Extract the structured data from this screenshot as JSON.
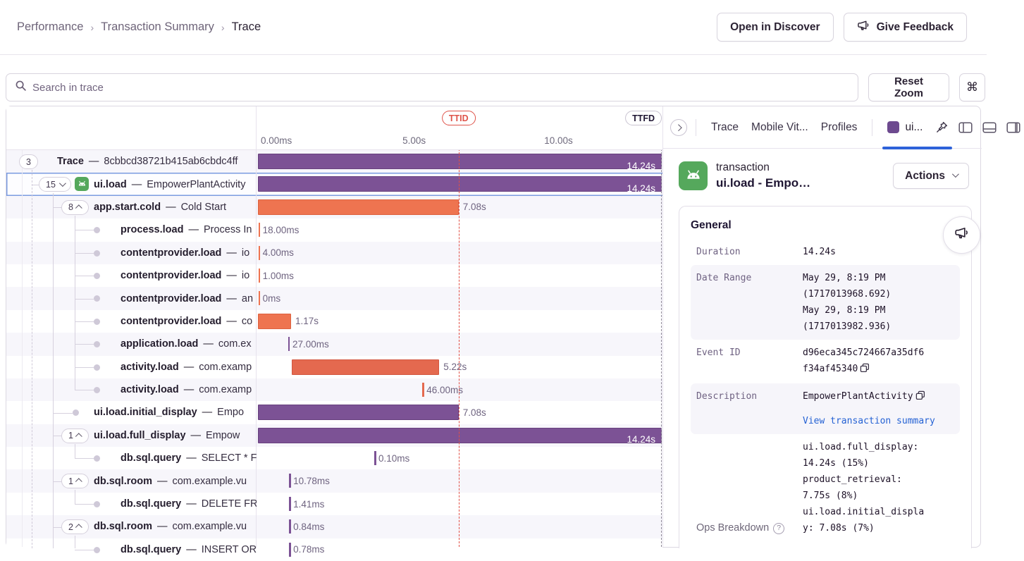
{
  "breadcrumb": {
    "items": [
      "Performance",
      "Transaction Summary"
    ],
    "current": "Trace"
  },
  "header": {
    "open_discover": "Open in Discover",
    "give_feedback": "Give Feedback"
  },
  "toolbar": {
    "search_placeholder": "Search in trace",
    "reset_zoom": "Reset Zoom",
    "shortcut": "⌘"
  },
  "timeline": {
    "ttid_label": "TTID",
    "ttfd_label": "TTFD",
    "ttid_pct": 49.7,
    "ttfd_pct": 100,
    "gridlines_pct": [
      35.1,
      70.2
    ],
    "ticks": [
      {
        "label": "0.00ms",
        "pct": 0
      },
      {
        "label": "5.00s",
        "pct": 35.1
      },
      {
        "label": "10.00s",
        "pct": 70.2
      }
    ]
  },
  "trace": {
    "separator": "—",
    "rows": [
      {
        "kind": "pill",
        "count": "3",
        "chevron": "none",
        "level": 0,
        "op": "Trace",
        "desc": "8cbbcd38721b415ab6cbdc4ff",
        "bar": {
          "shape": "bar",
          "color": "purple",
          "start": 0,
          "width": 100,
          "label": "14.24s",
          "inside": true
        }
      },
      {
        "kind": "pill",
        "count": "15",
        "chevron": "down",
        "level": 1,
        "op": "ui.load",
        "desc": "EmpowerPlantActivity",
        "icon": "android",
        "selected": true,
        "bar": {
          "shape": "bar",
          "color": "purple",
          "start": 0,
          "width": 100,
          "label": "14.24s",
          "inside": true
        }
      },
      {
        "kind": "pill",
        "count": "8",
        "chevron": "up",
        "level": 2,
        "op": "app.start.cold",
        "desc": "Cold Start",
        "bar": {
          "shape": "bar",
          "color": "orange",
          "start": 0,
          "width": 49.7,
          "label": "7.08s"
        }
      },
      {
        "kind": "dot",
        "level": 3,
        "op": "process.load",
        "desc": "Process In",
        "bar": {
          "shape": "tick",
          "color": "orange",
          "start": 0.1,
          "label": "18.00ms"
        }
      },
      {
        "kind": "dot",
        "level": 3,
        "op": "contentprovider.load",
        "desc": "io",
        "bar": {
          "shape": "tick",
          "color": "orange",
          "start": 0.1,
          "label": "4.00ms"
        }
      },
      {
        "kind": "dot",
        "level": 3,
        "op": "contentprovider.load",
        "desc": "io",
        "bar": {
          "shape": "tick",
          "color": "orange",
          "start": 0.1,
          "label": "1.00ms"
        }
      },
      {
        "kind": "dot",
        "level": 3,
        "op": "contentprovider.load",
        "desc": "an",
        "bar": {
          "shape": "tick",
          "color": "orange",
          "start": 0.1,
          "label": "0ms"
        }
      },
      {
        "kind": "dot",
        "level": 3,
        "op": "contentprovider.load",
        "desc": "co",
        "bar": {
          "shape": "bar",
          "color": "orange",
          "start": 0,
          "width": 8.2,
          "label": "1.17s"
        }
      },
      {
        "kind": "dot",
        "level": 3,
        "op": "application.load",
        "desc": "com.ex",
        "bar": {
          "shape": "tick",
          "color": "purple",
          "start": 7.5,
          "label": "27.00ms"
        }
      },
      {
        "kind": "dot",
        "level": 3,
        "op": "activity.load",
        "desc": "com.examp",
        "bar": {
          "shape": "bar",
          "color": "red",
          "start": 8.3,
          "width": 36.6,
          "label": "5.22s"
        }
      },
      {
        "kind": "dot",
        "level": 3,
        "op": "activity.load",
        "desc": "com.examp",
        "bar": {
          "shape": "tick",
          "color": "red",
          "start": 40.7,
          "label": "46.00ms"
        }
      },
      {
        "kind": "dot",
        "level": 2,
        "op": "ui.load.initial_display",
        "desc": "Empo",
        "bar": {
          "shape": "bar",
          "color": "purple",
          "start": 0,
          "width": 49.7,
          "label": "7.08s"
        }
      },
      {
        "kind": "pill",
        "count": "1",
        "chevron": "up",
        "level": 2,
        "op": "ui.load.full_display",
        "desc": "Empow",
        "bar": {
          "shape": "bar",
          "color": "purple",
          "start": 0,
          "width": 100,
          "label": "14.24s",
          "inside": true
        }
      },
      {
        "kind": "dot",
        "level": 3,
        "op": "db.sql.query",
        "desc": "SELECT * F",
        "bar": {
          "shape": "tick",
          "color": "purple",
          "start": 28.8,
          "label": "0.10ms"
        }
      },
      {
        "kind": "pill",
        "count": "1",
        "chevron": "up",
        "level": 2,
        "op": "db.sql.room",
        "desc": "com.example.vu",
        "bar": {
          "shape": "tick",
          "color": "purple",
          "start": 7.7,
          "label": "10.78ms"
        }
      },
      {
        "kind": "dot",
        "level": 3,
        "op": "db.sql.query",
        "desc": "DELETE FR",
        "bar": {
          "shape": "tick",
          "color": "purple",
          "start": 7.7,
          "label": "1.41ms"
        }
      },
      {
        "kind": "pill",
        "count": "2",
        "chevron": "up",
        "level": 2,
        "op": "db.sql.room",
        "desc": "com.example.vu",
        "bar": {
          "shape": "tick",
          "color": "purple",
          "start": 7.7,
          "label": "0.84ms"
        }
      },
      {
        "kind": "dot",
        "level": 3,
        "op": "db.sql.query",
        "desc": "INSERT OR",
        "bar": {
          "shape": "tick",
          "color": "purple",
          "start": 7.7,
          "label": "0.78ms"
        }
      }
    ]
  },
  "panel": {
    "tabs": [
      "Trace",
      "Mobile Vit...",
      "Profiles"
    ],
    "active_tab": "ui...",
    "txn_type": "transaction",
    "txn_title": "ui.load - Empo…",
    "actions_label": "Actions",
    "general": {
      "title": "General",
      "fields": [
        {
          "label": "Duration",
          "lines": [
            "14.24s"
          ]
        },
        {
          "label": "Date Range",
          "shaded": true,
          "lines": [
            "May 29, 8:19 PM",
            "(1717013968.692)",
            "May 29, 8:19 PM",
            "(1717013982.936)"
          ]
        },
        {
          "label": "Event ID",
          "copy": true,
          "lines": [
            "d96eca345c724667a35df6",
            "f34af45340"
          ]
        },
        {
          "label": "Description",
          "shaded": true,
          "copy": true,
          "lines": [
            "EmpowerPlantActivity"
          ],
          "link": "View transaction summary"
        },
        {
          "label": "Ops Breakdown",
          "sans": true,
          "help": true,
          "bottom": true,
          "lines": [
            "ui.load.full_display:",
            "14.24s (15%)",
            "product_retrieval:",
            "7.75s (8%)",
            "ui.load.initial_displa",
            "y: 7.08s (7%)"
          ]
        }
      ]
    }
  }
}
